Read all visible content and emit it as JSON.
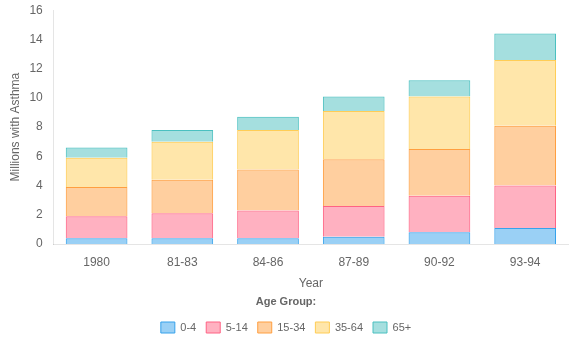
{
  "chart_data": {
    "type": "bar",
    "stacked": true,
    "categories": [
      "1980",
      "81-83",
      "84-86",
      "87-89",
      "90-92",
      "93-94"
    ],
    "series": [
      {
        "name": "0-4",
        "values": [
          0.4,
          0.4,
          0.4,
          0.5,
          0.8,
          1.1
        ]
      },
      {
        "name": "5-14",
        "values": [
          1.5,
          1.7,
          1.9,
          2.1,
          2.5,
          2.9
        ]
      },
      {
        "name": "15-34",
        "values": [
          2.0,
          2.3,
          2.8,
          3.2,
          3.2,
          4.1
        ]
      },
      {
        "name": "35-64",
        "values": [
          2.0,
          2.6,
          2.7,
          3.3,
          3.6,
          4.5
        ]
      },
      {
        "name": "65+",
        "values": [
          0.7,
          0.8,
          0.9,
          1.0,
          1.1,
          1.8
        ]
      }
    ],
    "xlabel": "Year",
    "ylabel": "Millions with Asthma",
    "ylim": [
      0,
      16
    ],
    "yticks": [
      0,
      2,
      4,
      6,
      8,
      10,
      12,
      14,
      16
    ],
    "grid": false,
    "legend": "bottom",
    "legend_title": "Age Group:"
  }
}
